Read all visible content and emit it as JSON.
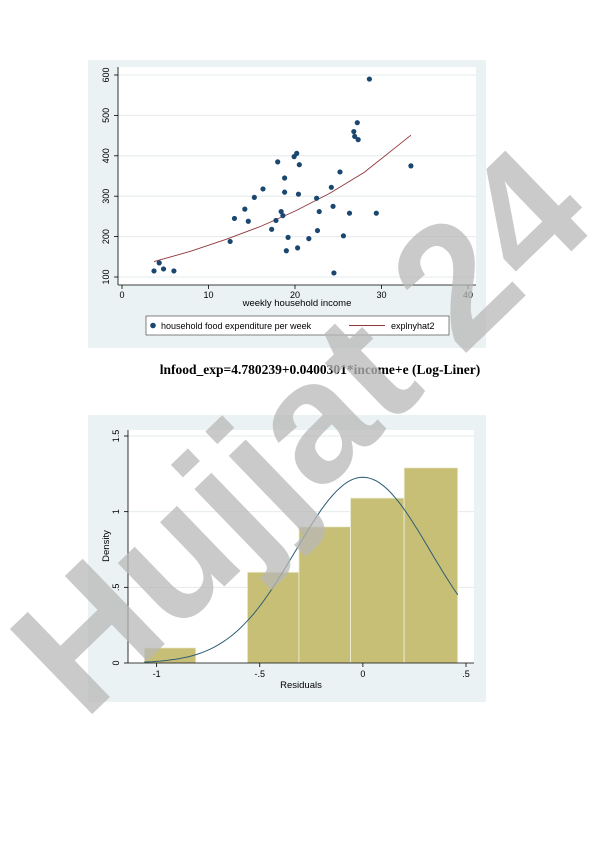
{
  "equation": "lnfood_exp=4.780239+0.0400301*income+e (Log-Liner)",
  "watermark": "Hujjat 24",
  "colors": {
    "panel": "#eaf2f3",
    "points": "#1a476f",
    "fit_line": "#90353b",
    "bars": "#c8bf76",
    "density": "#2c5c74",
    "watermark_purple": "#d3c7f4",
    "watermark_gray": "#9a9a9a"
  },
  "chart_data": [
    {
      "type": "scatter",
      "xlabel": "weekly household income",
      "ylabel": "",
      "xlim": [
        0,
        40
      ],
      "ylim": [
        100,
        600
      ],
      "xticks": [
        0,
        10,
        20,
        30,
        40
      ],
      "yticks": [
        100,
        200,
        300,
        400,
        500,
        600
      ],
      "grid": true,
      "legend_position": "bottom",
      "series": [
        {
          "name": "household food expenditure per week",
          "kind": "scatter",
          "points": [
            [
              3.7,
              115
            ],
            [
              4.3,
              135
            ],
            [
              4.8,
              120
            ],
            [
              6.0,
              115
            ],
            [
              12.5,
              188
            ],
            [
              13.0,
              245
            ],
            [
              14.2,
              268
            ],
            [
              14.6,
              238
            ],
            [
              15.3,
              297
            ],
            [
              16.3,
              318
            ],
            [
              17.3,
              218
            ],
            [
              17.8,
              240
            ],
            [
              18.0,
              385
            ],
            [
              18.4,
              262
            ],
            [
              18.6,
              252
            ],
            [
              18.8,
              345
            ],
            [
              18.8,
              310
            ],
            [
              19.0,
              165
            ],
            [
              19.2,
              198
            ],
            [
              19.9,
              398
            ],
            [
              20.2,
              406
            ],
            [
              20.3,
              172
            ],
            [
              20.4,
              305
            ],
            [
              20.5,
              378
            ],
            [
              21.6,
              195
            ],
            [
              22.5,
              295
            ],
            [
              22.6,
              215
            ],
            [
              22.8,
              262
            ],
            [
              24.2,
              322
            ],
            [
              24.4,
              275
            ],
            [
              24.5,
              110
            ],
            [
              25.2,
              360
            ],
            [
              25.6,
              202
            ],
            [
              26.3,
              258
            ],
            [
              26.8,
              460
            ],
            [
              26.9,
              448
            ],
            [
              27.2,
              482
            ],
            [
              27.3,
              440
            ],
            [
              28.6,
              590
            ],
            [
              29.4,
              258
            ],
            [
              33.4,
              375
            ]
          ]
        },
        {
          "name": "explnyhat2",
          "kind": "line",
          "points": [
            [
              3.7,
              138
            ],
            [
              8,
              164
            ],
            [
              12,
              193
            ],
            [
              16,
              225
            ],
            [
              20,
              263
            ],
            [
              24,
              307
            ],
            [
              28,
              359
            ],
            [
              33.4,
              451
            ]
          ]
        }
      ]
    },
    {
      "type": "bar",
      "subtype": "histogram",
      "xlabel": "Residuals",
      "ylabel": "Density",
      "xlim": [
        -1.1,
        0.5
      ],
      "ylim": [
        0,
        1.5
      ],
      "xticks": [
        -1,
        -0.5,
        0,
        0.5
      ],
      "xtick_labels": [
        "-1",
        "-.5",
        "0",
        ".5"
      ],
      "yticks": [
        0,
        0.5,
        1,
        1.5
      ],
      "ytick_labels": [
        "0",
        ".5",
        "1",
        "1.5"
      ],
      "bins": [
        {
          "x0": -1.06,
          "x1": -0.81,
          "density": 0.1
        },
        {
          "x0": -0.56,
          "x1": -0.31,
          "density": 0.6
        },
        {
          "x0": -0.31,
          "x1": -0.06,
          "density": 0.9
        },
        {
          "x0": -0.06,
          "x1": 0.2,
          "density": 1.09
        },
        {
          "x0": 0.2,
          "x1": 0.46,
          "density": 1.29
        }
      ],
      "density_curve": {
        "mean": 0,
        "sd": 0.325,
        "x_range": [
          -1.06,
          0.46
        ]
      }
    }
  ]
}
